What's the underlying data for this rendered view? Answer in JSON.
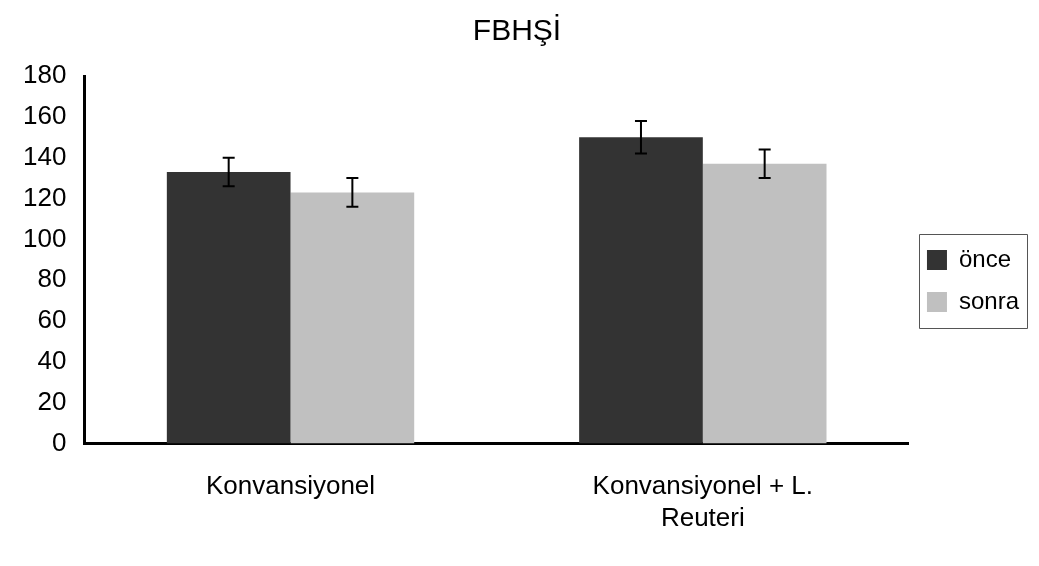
{
  "chart_data": {
    "type": "bar",
    "title": "FBHŞİ",
    "categories": [
      "Konvansiyonel",
      "Konvansiyonel + L. Reuteri"
    ],
    "series": [
      {
        "name": "önce",
        "color": "#333333",
        "values": [
          133,
          150
        ],
        "errors": [
          7,
          8
        ]
      },
      {
        "name": "sonra",
        "color": "#c0c0c0",
        "values": [
          123,
          137
        ],
        "errors": [
          7,
          7
        ]
      }
    ],
    "ylim": [
      0,
      180
    ],
    "yticks": [
      0,
      20,
      40,
      60,
      80,
      100,
      120,
      140,
      160,
      180
    ],
    "grid": false,
    "legend": "right"
  }
}
